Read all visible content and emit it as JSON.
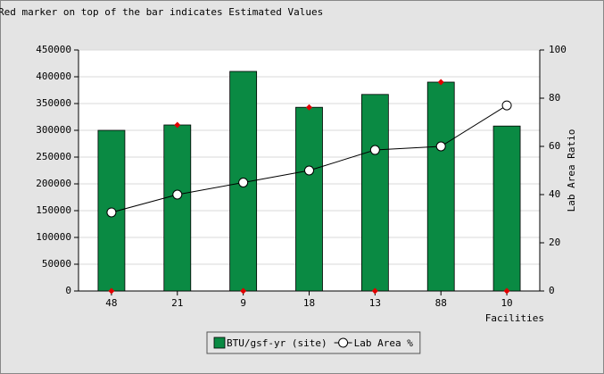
{
  "chart_data": {
    "type": "bar",
    "title": "Red marker on top of the bar indicates Estimated Values",
    "x_label": "Facilities",
    "y2_label": "Lab Area Ratio",
    "categories": [
      "48",
      "21",
      "9",
      "18",
      "13",
      "88",
      "10"
    ],
    "series": [
      {
        "name": "BTU/gsf-yr (site)",
        "type": "bar",
        "color": "#0a8a43",
        "values": [
          300000,
          310000,
          410000,
          343000,
          367000,
          390000,
          308000
        ]
      },
      {
        "name": "Lab Area %",
        "type": "line",
        "axis": "y2",
        "color": "#000000",
        "values": [
          32.6,
          40,
          45,
          50,
          58.5,
          60,
          77
        ]
      }
    ],
    "markers": {
      "color": "#e00000",
      "values": [
        0,
        310000,
        0,
        343000,
        0,
        390000,
        0
      ]
    },
    "ylim": [
      0,
      450000
    ],
    "yticks": [
      0,
      50000,
      100000,
      150000,
      200000,
      250000,
      300000,
      350000,
      400000,
      450000
    ],
    "y2lim": [
      0,
      100
    ],
    "y2ticks": [
      0,
      20,
      40,
      60,
      80,
      100
    ],
    "grid": true,
    "legend": "bottom"
  }
}
